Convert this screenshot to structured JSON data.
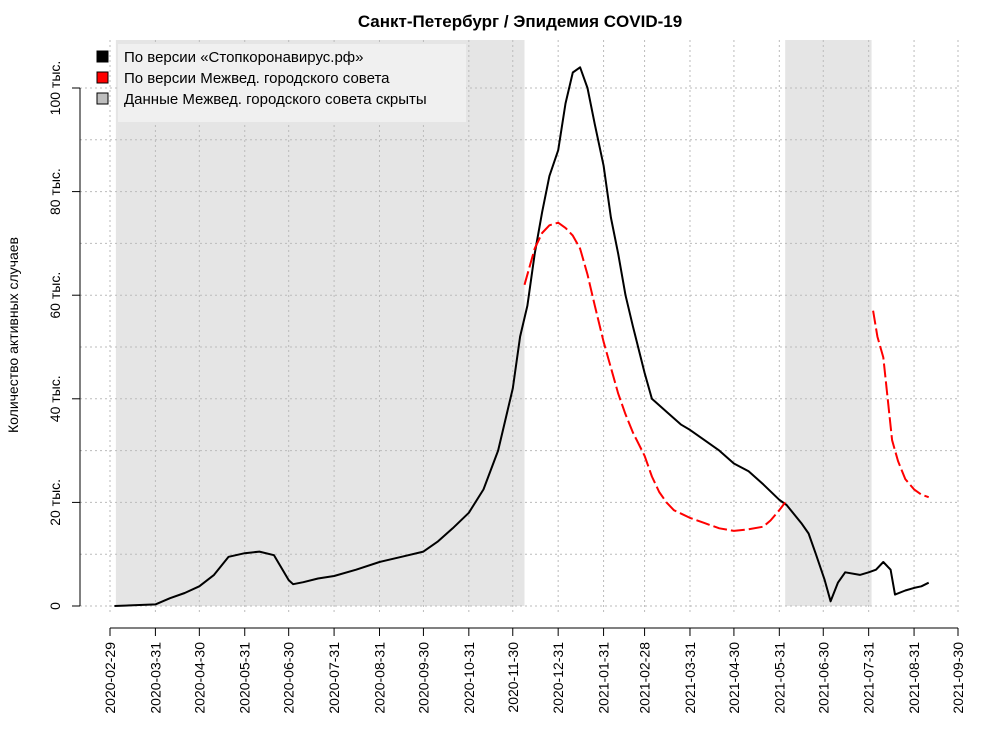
{
  "chart_data": {
    "type": "line",
    "title": "Санкт-Петербург / Эпидемия COVID-19",
    "ylabel": "Количество активных случаев",
    "xlabel": "",
    "x_range": [
      "2020-02-29",
      "2021-09-30"
    ],
    "ylim": [
      0,
      108000
    ],
    "grid": true,
    "legend_position": "top-left",
    "x_ticks": [
      "2020-02-29",
      "2020-03-31",
      "2020-04-30",
      "2020-05-31",
      "2020-06-30",
      "2020-07-31",
      "2020-08-31",
      "2020-09-30",
      "2020-10-31",
      "2020-11-30",
      "2020-12-31",
      "2021-01-31",
      "2021-02-28",
      "2021-03-31",
      "2021-04-30",
      "2021-05-31",
      "2021-06-30",
      "2021-07-31",
      "2021-08-31",
      "2021-09-30"
    ],
    "y_ticks": [
      {
        "value": 0,
        "label": "0"
      },
      {
        "value": 20000,
        "label": "20 тыс."
      },
      {
        "value": 40000,
        "label": "40 тыс."
      },
      {
        "value": 60000,
        "label": "60 тыс."
      },
      {
        "value": 80000,
        "label": "80 тыс."
      },
      {
        "value": 100000,
        "label": "100 тыс."
      }
    ],
    "shaded_periods": [
      {
        "start": "2020-03-04",
        "end": "2020-12-08",
        "color": "#e5e5e5"
      },
      {
        "start": "2021-06-04",
        "end": "2021-08-02",
        "color": "#e5e5e5"
      }
    ],
    "legend": [
      {
        "label": "По версии «Стопкоронавирус.рф»",
        "color": "#000000"
      },
      {
        "label": "По версии Межвед. городского совета",
        "color": "#ff0000"
      },
      {
        "label": "Данные Межвед. городского совета скрыты",
        "color": "#bebebe"
      }
    ],
    "series": [
      {
        "name": "По версии «Стопкоронавирус.рф»",
        "color": "#000000",
        "style": "solid",
        "points": [
          [
            "2020-03-03",
            0
          ],
          [
            "2020-03-31",
            300
          ],
          [
            "2020-04-10",
            1500
          ],
          [
            "2020-04-20",
            2500
          ],
          [
            "2020-04-30",
            3800
          ],
          [
            "2020-05-10",
            6000
          ],
          [
            "2020-05-20",
            9500
          ],
          [
            "2020-05-31",
            10200
          ],
          [
            "2020-06-10",
            10500
          ],
          [
            "2020-06-20",
            9800
          ],
          [
            "2020-06-30",
            5000
          ],
          [
            "2020-07-03",
            4200
          ],
          [
            "2020-07-10",
            4600
          ],
          [
            "2020-07-20",
            5300
          ],
          [
            "2020-07-31",
            5800
          ],
          [
            "2020-08-15",
            7000
          ],
          [
            "2020-08-31",
            8500
          ],
          [
            "2020-09-15",
            9500
          ],
          [
            "2020-09-30",
            10500
          ],
          [
            "2020-10-10",
            12500
          ],
          [
            "2020-10-20",
            15000
          ],
          [
            "2020-10-31",
            18000
          ],
          [
            "2020-11-10",
            22500
          ],
          [
            "2020-11-20",
            30000
          ],
          [
            "2020-11-30",
            42000
          ],
          [
            "2020-12-05",
            52000
          ],
          [
            "2020-12-10",
            58000
          ],
          [
            "2020-12-15",
            68000
          ],
          [
            "2020-12-20",
            76000
          ],
          [
            "2020-12-25",
            83000
          ],
          [
            "2020-12-31",
            88000
          ],
          [
            "2021-01-05",
            97000
          ],
          [
            "2021-01-10",
            103000
          ],
          [
            "2021-01-15",
            104000
          ],
          [
            "2021-01-20",
            100000
          ],
          [
            "2021-01-25",
            93000
          ],
          [
            "2021-01-31",
            85000
          ],
          [
            "2021-02-05",
            75000
          ],
          [
            "2021-02-10",
            68000
          ],
          [
            "2021-02-15",
            60000
          ],
          [
            "2021-02-20",
            54000
          ],
          [
            "2021-02-28",
            45000
          ],
          [
            "2021-03-05",
            40000
          ],
          [
            "2021-03-15",
            37500
          ],
          [
            "2021-03-25",
            35000
          ],
          [
            "2021-03-31",
            34000
          ],
          [
            "2021-04-10",
            32000
          ],
          [
            "2021-04-20",
            30000
          ],
          [
            "2021-04-30",
            27500
          ],
          [
            "2021-05-10",
            26000
          ],
          [
            "2021-05-20",
            23500
          ],
          [
            "2021-05-31",
            20500
          ],
          [
            "2021-06-05",
            19500
          ],
          [
            "2021-06-15",
            16000
          ],
          [
            "2021-06-20",
            14000
          ],
          [
            "2021-06-25",
            10000
          ],
          [
            "2021-07-01",
            5000
          ],
          [
            "2021-07-05",
            900
          ],
          [
            "2021-07-10",
            4500
          ],
          [
            "2021-07-15",
            6500
          ],
          [
            "2021-07-25",
            6000
          ],
          [
            "2021-07-31",
            6500
          ],
          [
            "2021-08-05",
            7000
          ],
          [
            "2021-08-10",
            8500
          ],
          [
            "2021-08-15",
            7000
          ],
          [
            "2021-08-18",
            2200
          ],
          [
            "2021-08-25",
            3000
          ],
          [
            "2021-08-31",
            3500
          ],
          [
            "2021-09-05",
            3800
          ],
          [
            "2021-09-10",
            4500
          ]
        ]
      },
      {
        "name": "По версии Межвед. городского совета",
        "color": "#ff0000",
        "style": "dashed",
        "segments": [
          [
            [
              "2020-12-08",
              62000
            ],
            [
              "2020-12-15",
              69000
            ],
            [
              "2020-12-20",
              72000
            ],
            [
              "2020-12-25",
              73500
            ],
            [
              "2020-12-31",
              74000
            ],
            [
              "2021-01-05",
              73000
            ],
            [
              "2021-01-10",
              71500
            ],
            [
              "2021-01-15",
              69000
            ],
            [
              "2021-01-20",
              64000
            ],
            [
              "2021-01-25",
              58000
            ],
            [
              "2021-01-31",
              51000
            ],
            [
              "2021-02-05",
              46000
            ],
            [
              "2021-02-10",
              41000
            ],
            [
              "2021-02-15",
              37000
            ],
            [
              "2021-02-20",
              33500
            ],
            [
              "2021-02-28",
              29000
            ],
            [
              "2021-03-05",
              25000
            ],
            [
              "2021-03-10",
              22000
            ],
            [
              "2021-03-15",
              20000
            ],
            [
              "2021-03-20",
              18500
            ],
            [
              "2021-03-31",
              17000
            ],
            [
              "2021-04-10",
              16000
            ],
            [
              "2021-04-20",
              15000
            ],
            [
              "2021-04-30",
              14500
            ],
            [
              "2021-05-10",
              14800
            ],
            [
              "2021-05-20",
              15300
            ],
            [
              "2021-05-25",
              16500
            ],
            [
              "2021-05-31",
              18500
            ],
            [
              "2021-06-04",
              20000
            ]
          ],
          [
            [
              "2021-08-03",
              57000
            ],
            [
              "2021-08-06",
              52000
            ],
            [
              "2021-08-10",
              48000
            ],
            [
              "2021-08-13",
              40000
            ],
            [
              "2021-08-16",
              32000
            ],
            [
              "2021-08-20",
              28000
            ],
            [
              "2021-08-25",
              24500
            ],
            [
              "2021-08-31",
              22500
            ],
            [
              "2021-09-05",
              21500
            ],
            [
              "2021-09-10",
              21000
            ]
          ]
        ]
      }
    ]
  }
}
